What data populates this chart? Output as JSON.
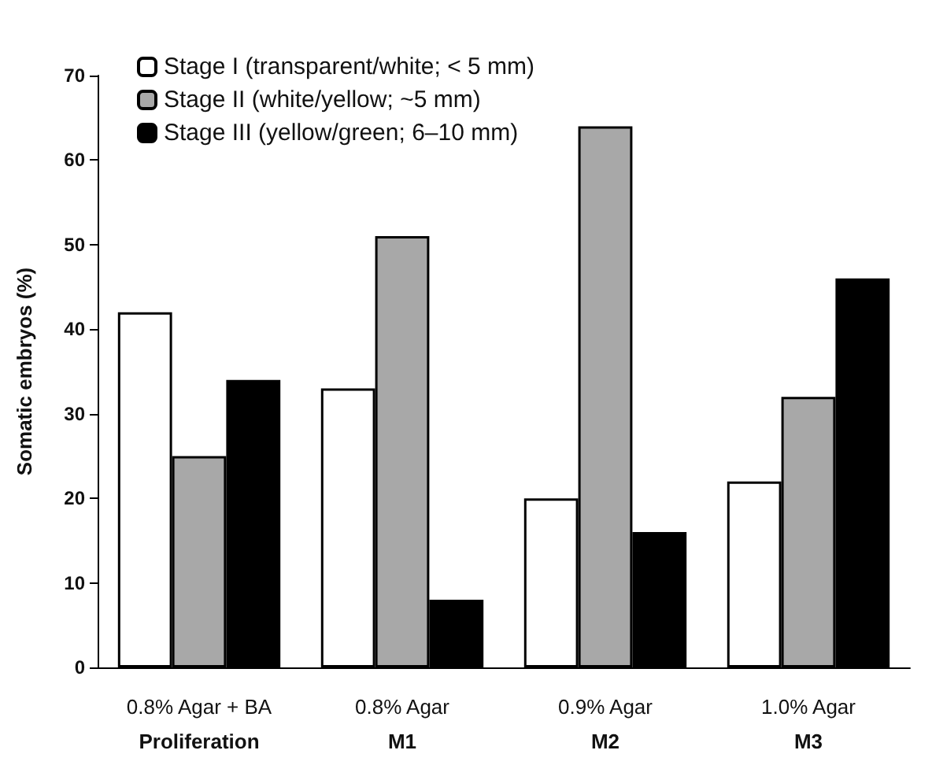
{
  "chart_data": {
    "type": "bar",
    "ylabel": "Somatic embryos (%)",
    "categories": [
      "0.8% Agar + BA\nProliferation",
      "0.8% Agar\nM1",
      "0.9% Agar\nM2",
      "1.0% Agar\nM3"
    ],
    "series": [
      {
        "name": "Stage I (transparent/white; < 5 mm)",
        "color": "#ffffff",
        "values": [
          42,
          33,
          20,
          22
        ]
      },
      {
        "name": "Stage II (white/yellow; ~5 mm)",
        "color": "#a8a8a8",
        "values": [
          25,
          51,
          64,
          32
        ]
      },
      {
        "name": "Stage III (yellow/green; 6–10 mm)",
        "color": "#000000",
        "values": [
          34,
          8,
          16,
          46
        ]
      }
    ],
    "ylim": [
      0,
      70
    ],
    "yticks": [
      0,
      10,
      20,
      30,
      40,
      50,
      60,
      70
    ],
    "grid": false,
    "legend": "top left"
  }
}
